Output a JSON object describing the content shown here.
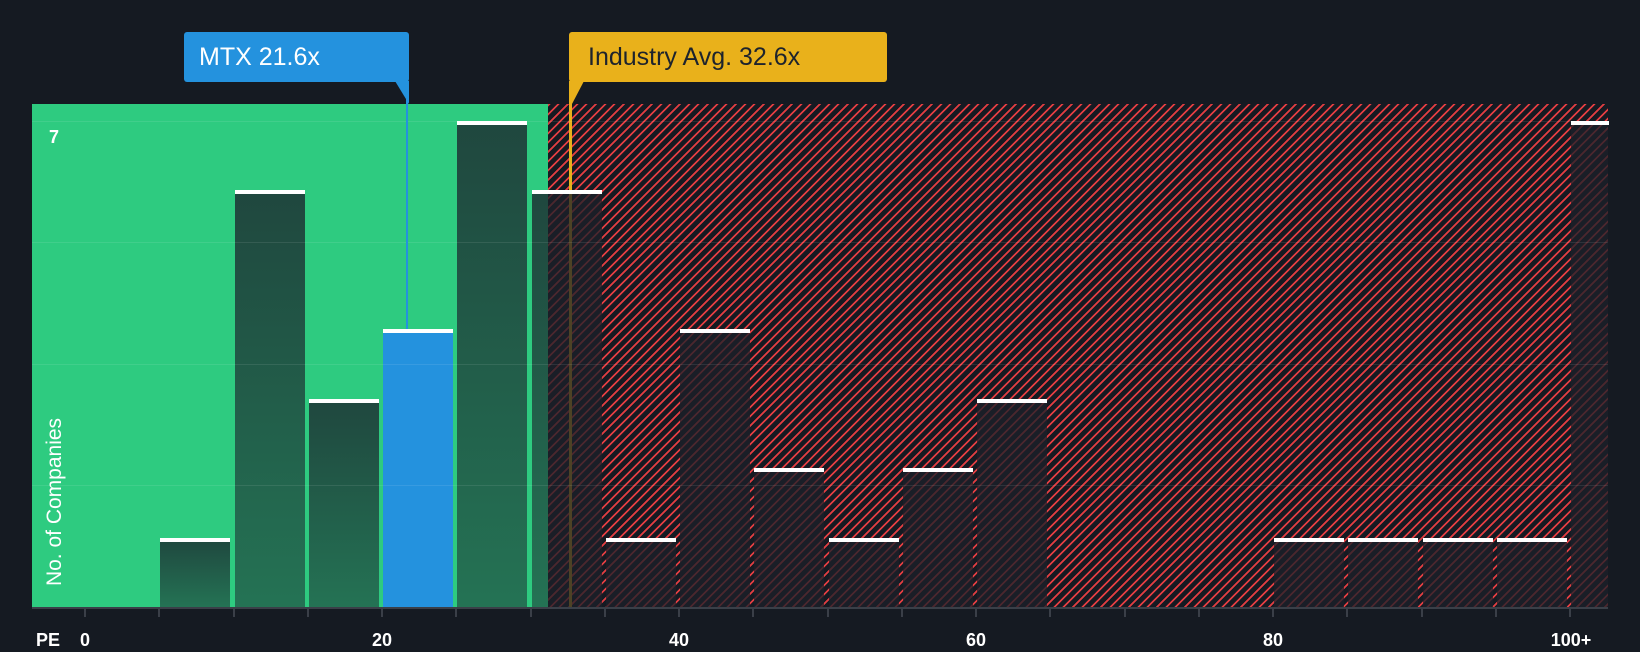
{
  "chart_data": {
    "type": "bar",
    "subtype": "histogram",
    "title": "",
    "xlabel": "PE",
    "ylabel": "No. of Companies",
    "categories": [
      "0-5",
      "5-10",
      "10-15",
      "15-20",
      "20-25",
      "25-30",
      "30-35",
      "35-40",
      "40-45",
      "45-50",
      "50-55",
      "55-60",
      "60-65",
      "65-70",
      "70-75",
      "75-80",
      "80-85",
      "85-90",
      "90-95",
      "95-100",
      "100+"
    ],
    "values": [
      0,
      1,
      6,
      3,
      4,
      7,
      6,
      1,
      4,
      2,
      1,
      2,
      3,
      0,
      0,
      0,
      1,
      1,
      1,
      1,
      7
    ],
    "bin_width": 5,
    "x_ticks": [
      {
        "value": 0,
        "label": "0"
      },
      {
        "value": 20,
        "label": "20"
      },
      {
        "value": 40,
        "label": "40"
      },
      {
        "value": 60,
        "label": "60"
      },
      {
        "value": 80,
        "label": "80"
      },
      {
        "value": 100,
        "label": "100+"
      }
    ],
    "y_ticks": [
      {
        "value": 7,
        "label": "7"
      }
    ],
    "gridlines": [
      1.75,
      3.5,
      5.25,
      7
    ],
    "xlim": [
      -3.6,
      102.6
    ],
    "ylim": [
      0,
      7
    ],
    "grid": true,
    "legend": null,
    "highlight": {
      "category_index": 4,
      "color": "#2492de"
    },
    "regions": [
      {
        "name": "below-industry-avg",
        "from": -3.6,
        "to": 31.2,
        "color": "#2ecb80",
        "pattern": "solid"
      },
      {
        "name": "above-industry-avg",
        "from": 31.2,
        "to": 102.6,
        "color": "#e23e42",
        "pattern": "hatched"
      }
    ],
    "annotations": [
      {
        "id": "company",
        "label": "MTX 21.6x",
        "value": 21.6,
        "color": "#2492de"
      },
      {
        "id": "industry",
        "label": "Industry Avg. 32.6x",
        "value": 32.6,
        "color": "#e9b11b"
      }
    ]
  },
  "colors": {
    "background": "#151a22",
    "fair_region": "#2ecb80",
    "expensive_hatch": "#e23e42",
    "company": "#2492de",
    "industry": "#e9b11b",
    "bar_cap": "#ffffff"
  }
}
